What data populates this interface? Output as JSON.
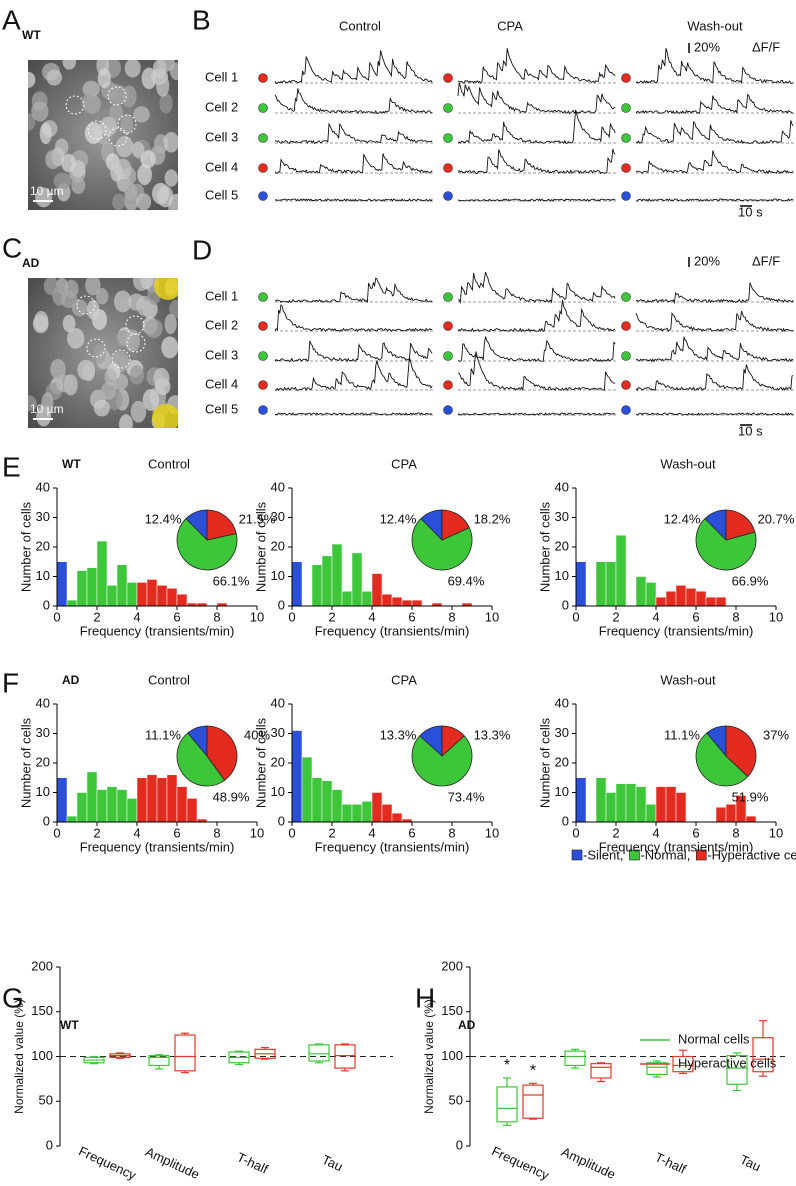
{
  "image_panels": [
    {
      "panel": "A",
      "group": "WT",
      "scale_bar": "10 µm"
    },
    {
      "panel": "C",
      "group": "AD",
      "scale_bar": "10 µm"
    }
  ],
  "trace_panels": [
    {
      "panel": "B",
      "conditions": [
        "Control",
        "CPA",
        "Wash-out"
      ],
      "amplitude_bar": "20%",
      "unit": "ΔF/F",
      "time_bar": "10 s",
      "cells": [
        {
          "label": "Cell 1",
          "color": "#e42b1f"
        },
        {
          "label": "Cell 2",
          "color": "#3ec63a"
        },
        {
          "label": "Cell 3",
          "color": "#3ec63a"
        },
        {
          "label": "Cell 4",
          "color": "#e42b1f"
        },
        {
          "label": "Cell 5",
          "color": "#2b4fd8"
        }
      ]
    },
    {
      "panel": "D",
      "amplitude_bar": "20%",
      "unit": "ΔF/F",
      "time_bar": "10 s",
      "cells": [
        {
          "label": "Cell 1",
          "color": "#3ec63a"
        },
        {
          "label": "Cell 2",
          "color": "#e42b1f"
        },
        {
          "label": "Cell 3",
          "color": "#3ec63a"
        },
        {
          "label": "Cell 4",
          "color": "#e42b1f"
        },
        {
          "label": "Cell 5",
          "color": "#2b4fd8"
        }
      ]
    }
  ],
  "histogram_legend": [
    {
      "name": "-Silent,",
      "color": "#2b4fd8"
    },
    {
      "name": "-Normal,",
      "color": "#3ec63a"
    },
    {
      "name": "-Hyperactive cells",
      "color": "#e42b1f"
    }
  ],
  "chart_data": [
    {
      "type": "histogram",
      "panel": "E",
      "group": "WT",
      "title": "Control",
      "xlabel": "Frequency (transients/min)",
      "ylabel": "Number of cells",
      "bins": [
        0,
        0.5,
        1,
        1.5,
        2,
        2.5,
        3,
        3.5,
        4,
        4.5,
        5,
        5.5,
        6,
        6.5,
        7,
        7.5,
        8,
        8.5,
        9,
        9.5,
        10
      ],
      "counts": [
        15,
        2,
        12,
        13,
        22,
        7,
        14,
        8,
        8,
        9,
        7,
        6,
        4,
        1,
        1,
        0,
        1,
        0,
        0,
        0
      ],
      "bar_colors": [
        "#2b4fd8",
        "#3ec63a",
        "#3ec63a",
        "#3ec63a",
        "#3ec63a",
        "#3ec63a",
        "#3ec63a",
        "#3ec63a",
        "#e42b1f",
        "#e42b1f",
        "#e42b1f",
        "#e42b1f",
        "#e42b1f",
        "#e42b1f",
        "#e42b1f",
        "#e42b1f",
        "#e42b1f",
        "#e42b1f",
        "#e42b1f",
        "#e42b1f"
      ],
      "xlim": [
        0,
        10
      ],
      "xticks": [
        0,
        2,
        4,
        6,
        8,
        10
      ],
      "ylim": [
        0,
        40
      ],
      "yticks": [
        0,
        10,
        20,
        30,
        40
      ],
      "pie": {
        "values": [
          12.4,
          66.1,
          21.5
        ],
        "value_labels": [
          "12.4%",
          "66.1%",
          "21.5%"
        ],
        "colors": [
          "#2b4fd8",
          "#3ec63a",
          "#e42b1f"
        ]
      }
    },
    {
      "type": "histogram",
      "title": "CPA",
      "xlabel": "Frequency (transients/min)",
      "ylabel": "Number of cells",
      "bins": [
        0,
        0.5,
        1,
        1.5,
        2,
        2.5,
        3,
        3.5,
        4,
        4.5,
        5,
        5.5,
        6,
        6.5,
        7,
        7.5,
        8,
        8.5,
        9,
        9.5,
        10
      ],
      "counts": [
        15,
        0,
        14,
        17,
        21,
        5,
        18,
        5,
        11,
        4,
        3,
        2,
        2,
        0,
        1,
        0,
        0,
        1,
        0,
        0
      ],
      "bar_colors": [
        "#2b4fd8",
        "#3ec63a",
        "#3ec63a",
        "#3ec63a",
        "#3ec63a",
        "#3ec63a",
        "#3ec63a",
        "#3ec63a",
        "#e42b1f",
        "#e42b1f",
        "#e42b1f",
        "#e42b1f",
        "#e42b1f",
        "#e42b1f",
        "#e42b1f",
        "#e42b1f",
        "#e42b1f",
        "#e42b1f",
        "#e42b1f",
        "#e42b1f"
      ],
      "xlim": [
        0,
        10
      ],
      "xticks": [
        0,
        2,
        4,
        6,
        8,
        10
      ],
      "ylim": [
        0,
        40
      ],
      "yticks": [
        0,
        10,
        20,
        30,
        40
      ],
      "pie": {
        "values": [
          12.4,
          69.4,
          18.2
        ],
        "value_labels": [
          "12.4%",
          "69.4%",
          "18.2%"
        ],
        "colors": [
          "#2b4fd8",
          "#3ec63a",
          "#e42b1f"
        ]
      }
    },
    {
      "type": "histogram",
      "title": "Wash-out",
      "xlabel": "Frequency (transients/min)",
      "ylabel": "Number of cells",
      "bins": [
        0,
        0.5,
        1,
        1.5,
        2,
        2.5,
        3,
        3.5,
        4,
        4.5,
        5,
        5.5,
        6,
        6.5,
        7,
        7.5,
        8,
        8.5,
        9,
        9.5,
        10
      ],
      "counts": [
        15,
        0,
        15,
        15,
        24,
        0,
        10,
        8,
        3,
        5,
        7,
        6,
        5,
        3,
        3,
        0,
        0,
        0,
        0,
        0
      ],
      "bar_colors": [
        "#2b4fd8",
        "#3ec63a",
        "#3ec63a",
        "#3ec63a",
        "#3ec63a",
        "#3ec63a",
        "#3ec63a",
        "#3ec63a",
        "#e42b1f",
        "#e42b1f",
        "#e42b1f",
        "#e42b1f",
        "#e42b1f",
        "#e42b1f",
        "#e42b1f",
        "#e42b1f",
        "#e42b1f",
        "#e42b1f",
        "#e42b1f",
        "#e42b1f"
      ],
      "xlim": [
        0,
        10
      ],
      "xticks": [
        0,
        2,
        4,
        6,
        8,
        10
      ],
      "ylim": [
        0,
        40
      ],
      "yticks": [
        0,
        10,
        20,
        30,
        40
      ],
      "pie": {
        "values": [
          12.4,
          66.9,
          20.7
        ],
        "value_labels": [
          "12.4%",
          "66.9%",
          "20.7%"
        ],
        "colors": [
          "#2b4fd8",
          "#3ec63a",
          "#e42b1f"
        ]
      }
    },
    {
      "type": "histogram",
      "panel": "F",
      "group": "AD",
      "title": "Control",
      "xlabel": "Frequency (transients/min)",
      "ylabel": "Number of cells",
      "bins": [
        0,
        0.5,
        1,
        1.5,
        2,
        2.5,
        3,
        3.5,
        4,
        4.5,
        5,
        5.5,
        6,
        6.5,
        7,
        7.5,
        8,
        8.5,
        9,
        9.5,
        10
      ],
      "counts": [
        15,
        2,
        10,
        17,
        11,
        12,
        11,
        8,
        15,
        16,
        15,
        16,
        12,
        8,
        1,
        0,
        0,
        0,
        0,
        0
      ],
      "bar_colors": [
        "#2b4fd8",
        "#3ec63a",
        "#3ec63a",
        "#3ec63a",
        "#3ec63a",
        "#3ec63a",
        "#3ec63a",
        "#3ec63a",
        "#e42b1f",
        "#e42b1f",
        "#e42b1f",
        "#e42b1f",
        "#e42b1f",
        "#e42b1f",
        "#e42b1f",
        "#e42b1f",
        "#e42b1f",
        "#e42b1f",
        "#e42b1f",
        "#e42b1f"
      ],
      "xlim": [
        0,
        10
      ],
      "xticks": [
        0,
        2,
        4,
        6,
        8,
        10
      ],
      "ylim": [
        0,
        40
      ],
      "yticks": [
        0,
        10,
        20,
        30,
        40
      ],
      "pie": {
        "values": [
          11.1,
          48.9,
          40
        ],
        "value_labels": [
          "11.1%",
          "48.9%",
          "40%"
        ],
        "colors": [
          "#2b4fd8",
          "#3ec63a",
          "#e42b1f"
        ]
      }
    },
    {
      "type": "histogram",
      "title": "CPA",
      "xlabel": "Frequency (transients/min)",
      "ylabel": "Number of cells",
      "bins": [
        0,
        0.5,
        1,
        1.5,
        2,
        2.5,
        3,
        3.5,
        4,
        4.5,
        5,
        5.5,
        6,
        6.5,
        7,
        7.5,
        8,
        8.5,
        9,
        9.5,
        10
      ],
      "counts": [
        31,
        22,
        15,
        14,
        11,
        6,
        6,
        7,
        10,
        6,
        3,
        1,
        0,
        0,
        0,
        0,
        0,
        0,
        0,
        0
      ],
      "bar_colors": [
        "#2b4fd8",
        "#3ec63a",
        "#3ec63a",
        "#3ec63a",
        "#3ec63a",
        "#3ec63a",
        "#3ec63a",
        "#3ec63a",
        "#e42b1f",
        "#e42b1f",
        "#e42b1f",
        "#e42b1f",
        "#e42b1f",
        "#e42b1f",
        "#e42b1f",
        "#e42b1f",
        "#e42b1f",
        "#e42b1f",
        "#e42b1f",
        "#e42b1f"
      ],
      "xlim": [
        0,
        10
      ],
      "xticks": [
        0,
        2,
        4,
        6,
        8,
        10
      ],
      "ylim": [
        0,
        40
      ],
      "yticks": [
        0,
        10,
        20,
        30,
        40
      ],
      "pie": {
        "values": [
          13.3,
          73.4,
          13.3
        ],
        "value_labels": [
          "13.3%",
          "73.4%",
          "13.3%"
        ],
        "colors": [
          "#2b4fd8",
          "#3ec63a",
          "#e42b1f"
        ]
      }
    },
    {
      "type": "histogram",
      "title": "Wash-out",
      "xlabel": "Frequency (transients/min)",
      "ylabel": "Number of cells",
      "bins": [
        0,
        0.5,
        1,
        1.5,
        2,
        2.5,
        3,
        3.5,
        4,
        4.5,
        5,
        5.5,
        6,
        6.5,
        7,
        7.5,
        8,
        8.5,
        9,
        9.5,
        10
      ],
      "counts": [
        15,
        0,
        15,
        10,
        13,
        13,
        12,
        6,
        12,
        12,
        10,
        0,
        0,
        0,
        5,
        6,
        9,
        2,
        0,
        0
      ],
      "bar_colors": [
        "#2b4fd8",
        "#3ec63a",
        "#3ec63a",
        "#3ec63a",
        "#3ec63a",
        "#3ec63a",
        "#3ec63a",
        "#3ec63a",
        "#e42b1f",
        "#e42b1f",
        "#e42b1f",
        "#e42b1f",
        "#e42b1f",
        "#e42b1f",
        "#e42b1f",
        "#e42b1f",
        "#e42b1f",
        "#e42b1f",
        "#e42b1f",
        "#e42b1f"
      ],
      "xlim": [
        0,
        10
      ],
      "xticks": [
        0,
        2,
        4,
        6,
        8,
        10
      ],
      "ylim": [
        0,
        40
      ],
      "yticks": [
        0,
        10,
        20,
        30,
        40
      ],
      "pie": {
        "values": [
          11.1,
          51.9,
          37
        ],
        "value_labels": [
          "11.1%",
          "51.9%",
          "37%"
        ],
        "colors": [
          "#2b4fd8",
          "#3ec63a",
          "#e42b1f"
        ]
      }
    },
    {
      "type": "box",
      "panel": "G",
      "group": "WT",
      "ylabel": "Normalized value (%)",
      "categories": [
        "Frequency",
        "Amplitude",
        "T-half",
        "Tau"
      ],
      "ylim": [
        0,
        200
      ],
      "yticks": [
        0,
        50,
        100,
        150,
        200
      ],
      "reference_line": 100,
      "series": [
        {
          "color": "#3ec63a",
          "values": [
            {
              "min": 92,
              "q1": 93,
              "median": 96,
              "q3": 99,
              "max": 100
            },
            {
              "min": 86,
              "q1": 90,
              "median": 99,
              "q3": 101,
              "max": 102
            },
            {
              "min": 91,
              "q1": 93,
              "median": 99,
              "q3": 105,
              "max": 106
            },
            {
              "min": 93,
              "q1": 95,
              "median": 103,
              "q3": 113,
              "max": 114
            }
          ]
        },
        {
          "color": "#e03a2a",
          "values": [
            {
              "min": 98,
              "q1": 99,
              "median": 101,
              "q3": 103,
              "max": 104
            },
            {
              "min": 82,
              "q1": 84,
              "median": 100,
              "q3": 124,
              "max": 126
            },
            {
              "min": 97,
              "q1": 98,
              "median": 103,
              "q3": 108,
              "max": 110
            },
            {
              "min": 84,
              "q1": 87,
              "median": 101,
              "q3": 113,
              "max": 114
            }
          ]
        }
      ]
    },
    {
      "type": "box",
      "panel": "H",
      "group": "AD",
      "ylabel": "Normalized value (%)",
      "categories": [
        "Frequency",
        "Amplitude",
        "T-half",
        "Tau"
      ],
      "ylim": [
        0,
        200
      ],
      "yticks": [
        0,
        50,
        100,
        150,
        200
      ],
      "reference_line": 100,
      "series": [
        {
          "name": "Normal cells",
          "color": "#3ec63a",
          "values": [
            {
              "min": 23,
              "q1": 27,
              "median": 42,
              "q3": 66,
              "max": 76
            },
            {
              "min": 87,
              "q1": 90,
              "median": 100,
              "q3": 106,
              "max": 108
            },
            {
              "min": 77,
              "q1": 80,
              "median": 88,
              "q3": 93,
              "max": 95
            },
            {
              "min": 62,
              "q1": 69,
              "median": 87,
              "q3": 101,
              "max": 104
            }
          ]
        },
        {
          "name": "Hyperactive cells",
          "color": "#e03a2a",
          "values": [
            {
              "min": 30,
              "q1": 31,
              "median": 57,
              "q3": 68,
              "max": 70
            },
            {
              "min": 72,
              "q1": 76,
              "median": 88,
              "q3": 92,
              "max": 93
            },
            {
              "min": 81,
              "q1": 83,
              "median": 90,
              "q3": 100,
              "max": 107
            },
            {
              "min": 78,
              "q1": 83,
              "median": 97,
              "q3": 121,
              "max": 140
            }
          ]
        }
      ],
      "annotations": [
        {
          "text": "*",
          "category": "Frequency",
          "series": "Normal cells"
        },
        {
          "text": "*",
          "category": "Frequency",
          "series": "Hyperactive cells"
        }
      ]
    }
  ]
}
